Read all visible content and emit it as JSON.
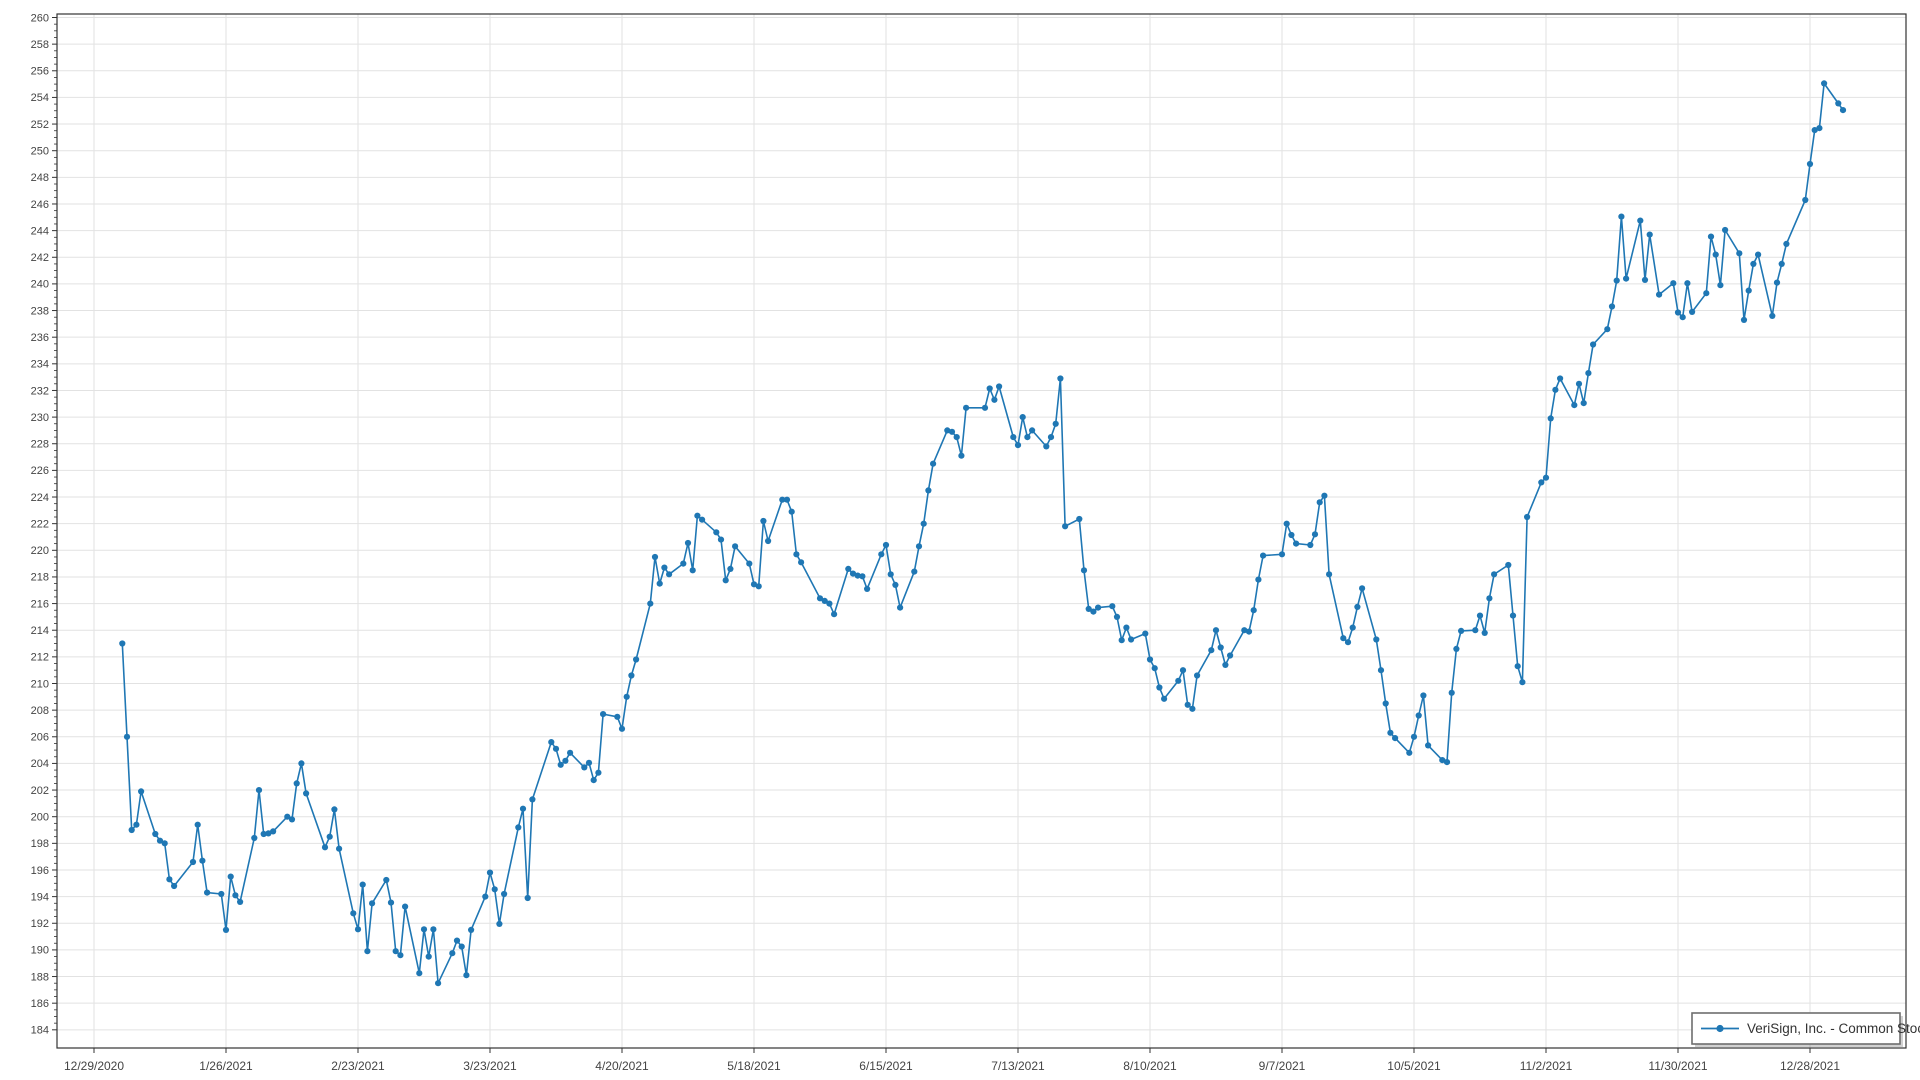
{
  "legend": {
    "label": "VeriSign, Inc. - Common Stock"
  },
  "colors": {
    "line": "#1f77b4",
    "grid": "#e2e2e2",
    "axis": "#333333",
    "tick_label": "#444444",
    "legend_border": "#6e6e6e",
    "legend_text": "#333333"
  },
  "chart_data": {
    "type": "line",
    "title": "",
    "xlabel": "",
    "ylabel": "",
    "grid": true,
    "legend_position": "bottom-right",
    "y_axis": {
      "min": 184,
      "max": 260,
      "step": 2,
      "minor_step": 0.5
    },
    "x_axis_range": [
      "2020-12-21",
      "2022-01-17"
    ],
    "x_ticks": [
      {
        "date": "2020-12-29",
        "label": "12/29/2020"
      },
      {
        "date": "2021-01-26",
        "label": "1/26/2021"
      },
      {
        "date": "2021-02-23",
        "label": "2/23/2021"
      },
      {
        "date": "2021-03-23",
        "label": "3/23/2021"
      },
      {
        "date": "2021-04-20",
        "label": "4/20/2021"
      },
      {
        "date": "2021-05-18",
        "label": "5/18/2021"
      },
      {
        "date": "2021-06-15",
        "label": "6/15/2021"
      },
      {
        "date": "2021-07-13",
        "label": "7/13/2021"
      },
      {
        "date": "2021-08-10",
        "label": "8/10/2021"
      },
      {
        "date": "2021-09-07",
        "label": "9/7/2021"
      },
      {
        "date": "2021-10-05",
        "label": "10/5/2021"
      },
      {
        "date": "2021-11-02",
        "label": "11/2/2021"
      },
      {
        "date": "2021-11-30",
        "label": "11/30/2021"
      },
      {
        "date": "2021-12-28",
        "label": "12/28/2021"
      }
    ],
    "series": [
      {
        "name": "VeriSign, Inc. - Common Stock",
        "color": "#1f77b4",
        "marker": "circle",
        "points": [
          [
            "2021-01-04",
            213
          ],
          [
            "2021-01-05",
            206
          ],
          [
            "2021-01-06",
            199
          ],
          [
            "2021-01-07",
            199.4
          ],
          [
            "2021-01-08",
            201.9
          ],
          [
            "2021-01-11",
            198.7
          ],
          [
            "2021-01-12",
            198.2
          ],
          [
            "2021-01-13",
            198
          ],
          [
            "2021-01-14",
            195.3
          ],
          [
            "2021-01-15",
            194.8
          ],
          [
            "2021-01-19",
            196.6
          ],
          [
            "2021-01-20",
            199.4
          ],
          [
            "2021-01-21",
            196.7
          ],
          [
            "2021-01-22",
            194.3
          ],
          [
            "2021-01-25",
            194.2
          ],
          [
            "2021-01-26",
            191.5
          ],
          [
            "2021-01-27",
            195.5
          ],
          [
            "2021-01-28",
            194.1
          ],
          [
            "2021-01-29",
            193.6
          ],
          [
            "2021-02-01",
            198.4
          ],
          [
            "2021-02-02",
            202
          ],
          [
            "2021-02-03",
            198.7
          ],
          [
            "2021-02-04",
            198.75
          ],
          [
            "2021-02-05",
            198.9
          ],
          [
            "2021-02-08",
            200
          ],
          [
            "2021-02-09",
            199.8
          ],
          [
            "2021-02-10",
            202.5
          ],
          [
            "2021-02-11",
            204
          ],
          [
            "2021-02-12",
            201.75
          ],
          [
            "2021-02-16",
            197.7
          ],
          [
            "2021-02-17",
            198.5
          ],
          [
            "2021-02-18",
            200.55
          ],
          [
            "2021-02-19",
            197.6
          ],
          [
            "2021-02-22",
            192.75
          ],
          [
            "2021-02-23",
            191.55
          ],
          [
            "2021-02-24",
            194.9
          ],
          [
            "2021-02-25",
            189.9
          ],
          [
            "2021-02-26",
            193.5
          ],
          [
            "2021-03-01",
            195.25
          ],
          [
            "2021-03-02",
            193.55
          ],
          [
            "2021-03-03",
            189.9
          ],
          [
            "2021-03-04",
            189.6
          ],
          [
            "2021-03-05",
            193.25
          ],
          [
            "2021-03-08",
            188.25
          ],
          [
            "2021-03-09",
            191.55
          ],
          [
            "2021-03-10",
            189.5
          ],
          [
            "2021-03-11",
            191.55
          ],
          [
            "2021-03-12",
            187.5
          ],
          [
            "2021-03-15",
            189.75
          ],
          [
            "2021-03-16",
            190.7
          ],
          [
            "2021-03-17",
            190.25
          ],
          [
            "2021-03-18",
            188.1
          ],
          [
            "2021-03-19",
            191.5
          ],
          [
            "2021-03-22",
            194
          ],
          [
            "2021-03-23",
            195.8
          ],
          [
            "2021-03-24",
            194.55
          ],
          [
            "2021-03-25",
            191.95
          ],
          [
            "2021-03-26",
            194.2
          ],
          [
            "2021-03-29",
            199.2
          ],
          [
            "2021-03-30",
            200.6
          ],
          [
            "2021-03-31",
            193.9
          ],
          [
            "2021-04-01",
            201.3
          ],
          [
            "2021-04-05",
            205.6
          ],
          [
            "2021-04-06",
            205.1
          ],
          [
            "2021-04-07",
            203.9
          ],
          [
            "2021-04-08",
            204.2
          ],
          [
            "2021-04-09",
            204.8
          ],
          [
            "2021-04-12",
            203.7
          ],
          [
            "2021-04-13",
            204.05
          ],
          [
            "2021-04-14",
            202.75
          ],
          [
            "2021-04-15",
            203.3
          ],
          [
            "2021-04-16",
            207.7
          ],
          [
            "2021-04-19",
            207.5
          ],
          [
            "2021-04-20",
            206.6
          ],
          [
            "2021-04-21",
            209
          ],
          [
            "2021-04-22",
            210.6
          ],
          [
            "2021-04-23",
            211.8
          ],
          [
            "2021-04-26",
            216
          ],
          [
            "2021-04-27",
            219.5
          ],
          [
            "2021-04-28",
            217.5
          ],
          [
            "2021-04-29",
            218.7
          ],
          [
            "2021-04-30",
            218.2
          ],
          [
            "2021-05-03",
            219
          ],
          [
            "2021-05-04",
            220.55
          ],
          [
            "2021-05-05",
            218.5
          ],
          [
            "2021-05-06",
            222.6
          ],
          [
            "2021-05-07",
            222.3
          ],
          [
            "2021-05-10",
            221.35
          ],
          [
            "2021-05-11",
            220.8
          ],
          [
            "2021-05-12",
            217.75
          ],
          [
            "2021-05-13",
            218.6
          ],
          [
            "2021-05-14",
            220.3
          ],
          [
            "2021-05-17",
            219
          ],
          [
            "2021-05-18",
            217.45
          ],
          [
            "2021-05-19",
            217.3
          ],
          [
            "2021-05-20",
            222.2
          ],
          [
            "2021-05-21",
            220.7
          ],
          [
            "2021-05-24",
            223.8
          ],
          [
            "2021-05-25",
            223.8
          ],
          [
            "2021-05-26",
            222.9
          ],
          [
            "2021-05-27",
            219.7
          ],
          [
            "2021-05-28",
            219.1
          ],
          [
            "2021-06-01",
            216.4
          ],
          [
            "2021-06-02",
            216.2
          ],
          [
            "2021-06-03",
            216
          ],
          [
            "2021-06-04",
            215.2
          ],
          [
            "2021-06-07",
            218.6
          ],
          [
            "2021-06-08",
            218.25
          ],
          [
            "2021-06-09",
            218.1
          ],
          [
            "2021-06-10",
            218.05
          ],
          [
            "2021-06-11",
            217.1
          ],
          [
            "2021-06-14",
            219.7
          ],
          [
            "2021-06-15",
            220.4
          ],
          [
            "2021-06-16",
            218.2
          ],
          [
            "2021-06-17",
            217.4
          ],
          [
            "2021-06-18",
            215.7
          ],
          [
            "2021-06-21",
            218.4
          ],
          [
            "2021-06-22",
            220.3
          ],
          [
            "2021-06-23",
            222
          ],
          [
            "2021-06-24",
            224.5
          ],
          [
            "2021-06-25",
            226.5
          ],
          [
            "2021-06-28",
            229
          ],
          [
            "2021-06-29",
            228.9
          ],
          [
            "2021-06-30",
            228.5
          ],
          [
            "2021-07-01",
            227.1
          ],
          [
            "2021-07-02",
            230.7
          ],
          [
            "2021-07-06",
            230.7
          ],
          [
            "2021-07-07",
            232.15
          ],
          [
            "2021-07-08",
            231.3
          ],
          [
            "2021-07-09",
            232.3
          ],
          [
            "2021-07-12",
            228.5
          ],
          [
            "2021-07-13",
            227.9
          ],
          [
            "2021-07-14",
            230
          ],
          [
            "2021-07-15",
            228.5
          ],
          [
            "2021-07-16",
            229
          ],
          [
            "2021-07-19",
            227.8
          ],
          [
            "2021-07-20",
            228.5
          ],
          [
            "2021-07-21",
            229.5
          ],
          [
            "2021-07-22",
            232.9
          ],
          [
            "2021-07-23",
            221.8
          ],
          [
            "2021-07-26",
            222.35
          ],
          [
            "2021-07-27",
            218.5
          ],
          [
            "2021-07-28",
            215.6
          ],
          [
            "2021-07-29",
            215.4
          ],
          [
            "2021-07-30",
            215.7
          ],
          [
            "2021-08-02",
            215.8
          ],
          [
            "2021-08-03",
            215
          ],
          [
            "2021-08-04",
            213.25
          ],
          [
            "2021-08-05",
            214.2
          ],
          [
            "2021-08-06",
            213.3
          ],
          [
            "2021-08-09",
            213.75
          ],
          [
            "2021-08-10",
            211.8
          ],
          [
            "2021-08-11",
            211.15
          ],
          [
            "2021-08-12",
            209.7
          ],
          [
            "2021-08-13",
            208.85
          ],
          [
            "2021-08-16",
            210.2
          ],
          [
            "2021-08-17",
            211
          ],
          [
            "2021-08-18",
            208.4
          ],
          [
            "2021-08-19",
            208.1
          ],
          [
            "2021-08-20",
            210.6
          ],
          [
            "2021-08-23",
            212.5
          ],
          [
            "2021-08-24",
            214
          ],
          [
            "2021-08-25",
            212.7
          ],
          [
            "2021-08-26",
            211.4
          ],
          [
            "2021-08-27",
            212.1
          ],
          [
            "2021-08-30",
            214
          ],
          [
            "2021-08-31",
            213.9
          ],
          [
            "2021-09-01",
            215.5
          ],
          [
            "2021-09-02",
            217.8
          ],
          [
            "2021-09-03",
            219.6
          ],
          [
            "2021-09-07",
            219.7
          ],
          [
            "2021-09-08",
            222
          ],
          [
            "2021-09-09",
            221.15
          ],
          [
            "2021-09-10",
            220.5
          ],
          [
            "2021-09-13",
            220.4
          ],
          [
            "2021-09-14",
            221.2
          ],
          [
            "2021-09-15",
            223.6
          ],
          [
            "2021-09-16",
            224.1
          ],
          [
            "2021-09-17",
            218.2
          ],
          [
            "2021-09-20",
            213.4
          ],
          [
            "2021-09-21",
            213.1
          ],
          [
            "2021-09-22",
            214.2
          ],
          [
            "2021-09-23",
            215.75
          ],
          [
            "2021-09-24",
            217.15
          ],
          [
            "2021-09-27",
            213.3
          ],
          [
            "2021-09-28",
            211
          ],
          [
            "2021-09-29",
            208.5
          ],
          [
            "2021-09-30",
            206.3
          ],
          [
            "2021-10-01",
            205.9
          ],
          [
            "2021-10-04",
            204.8
          ],
          [
            "2021-10-05",
            206
          ],
          [
            "2021-10-06",
            207.6
          ],
          [
            "2021-10-07",
            209.1
          ],
          [
            "2021-10-08",
            205.35
          ],
          [
            "2021-10-11",
            204.25
          ],
          [
            "2021-10-12",
            204.1
          ],
          [
            "2021-10-13",
            209.3
          ],
          [
            "2021-10-14",
            212.6
          ],
          [
            "2021-10-15",
            213.95
          ],
          [
            "2021-10-18",
            214
          ],
          [
            "2021-10-19",
            215.1
          ],
          [
            "2021-10-20",
            213.8
          ],
          [
            "2021-10-21",
            216.4
          ],
          [
            "2021-10-22",
            218.2
          ],
          [
            "2021-10-25",
            218.9
          ],
          [
            "2021-10-26",
            215.1
          ],
          [
            "2021-10-27",
            211.3
          ],
          [
            "2021-10-28",
            210.1
          ],
          [
            "2021-10-29",
            222.5
          ],
          [
            "2021-11-01",
            225.1
          ],
          [
            "2021-11-02",
            225.45
          ],
          [
            "2021-11-03",
            229.9
          ],
          [
            "2021-11-04",
            232.05
          ],
          [
            "2021-11-05",
            232.9
          ],
          [
            "2021-11-08",
            230.9
          ],
          [
            "2021-11-09",
            232.5
          ],
          [
            "2021-11-10",
            231.05
          ],
          [
            "2021-11-11",
            233.3
          ],
          [
            "2021-11-12",
            235.45
          ],
          [
            "2021-11-15",
            236.6
          ],
          [
            "2021-11-16",
            238.3
          ],
          [
            "2021-11-17",
            240.25
          ],
          [
            "2021-11-18",
            245.05
          ],
          [
            "2021-11-19",
            240.4
          ],
          [
            "2021-11-22",
            244.75
          ],
          [
            "2021-11-23",
            240.3
          ],
          [
            "2021-11-24",
            243.7
          ],
          [
            "2021-11-26",
            239.2
          ],
          [
            "2021-11-29",
            240.05
          ],
          [
            "2021-11-30",
            237.85
          ],
          [
            "2021-12-01",
            237.5
          ],
          [
            "2021-12-02",
            240.05
          ],
          [
            "2021-12-03",
            237.9
          ],
          [
            "2021-12-06",
            239.3
          ],
          [
            "2021-12-07",
            243.55
          ],
          [
            "2021-12-08",
            242.2
          ],
          [
            "2021-12-09",
            239.9
          ],
          [
            "2021-12-10",
            244.05
          ],
          [
            "2021-12-13",
            242.3
          ],
          [
            "2021-12-14",
            237.3
          ],
          [
            "2021-12-15",
            239.5
          ],
          [
            "2021-12-16",
            241.5
          ],
          [
            "2021-12-17",
            242.2
          ],
          [
            "2021-12-20",
            237.6
          ],
          [
            "2021-12-21",
            240.1
          ],
          [
            "2021-12-22",
            241.5
          ],
          [
            "2021-12-23",
            243
          ],
          [
            "2021-12-27",
            246.3
          ],
          [
            "2021-12-28",
            249
          ],
          [
            "2021-12-29",
            251.55
          ],
          [
            "2021-12-30",
            251.7
          ],
          [
            "2021-12-31",
            255.05
          ],
          [
            "2022-01-03",
            253.55
          ],
          [
            "2022-01-04",
            253.05
          ]
        ]
      }
    ]
  }
}
